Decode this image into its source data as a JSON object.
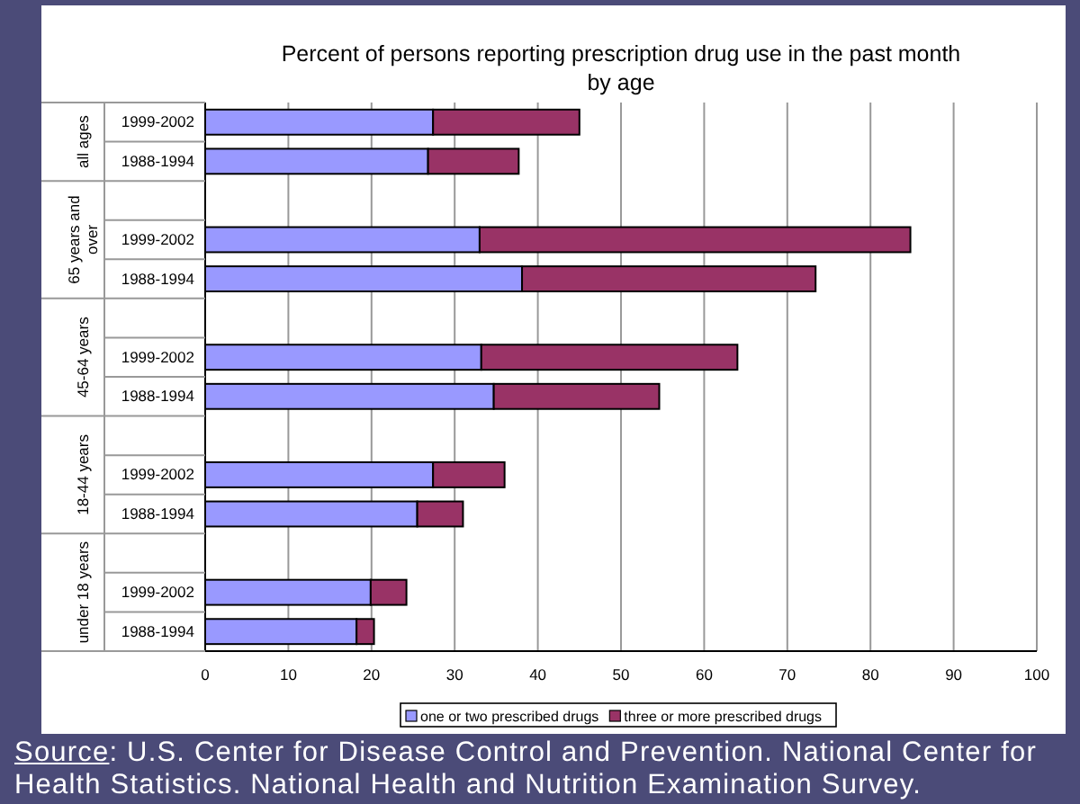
{
  "chart_data": {
    "type": "bar",
    "orientation": "horizontal",
    "stacked": true,
    "title": "Percent of persons reporting prescription drug use in the past month by age",
    "categories": [
      "1999-2002",
      "1988-1994",
      null,
      "1999-2002",
      "1988-1994",
      null,
      "1999-2002",
      "1988-1994",
      null,
      "1999-2002",
      "1988-1994",
      null,
      "1999-2002",
      "1988-1994"
    ],
    "series": [
      {
        "name": "one or two prescribed drugs",
        "color": "#9999ff",
        "values": [
          27.4,
          26.8,
          null,
          33.0,
          38.1,
          null,
          33.2,
          34.7,
          null,
          27.4,
          25.5,
          null,
          19.9,
          18.2
        ]
      },
      {
        "name": "three or more prescribed drugs",
        "color": "#993366",
        "values": [
          17.6,
          10.9,
          null,
          51.8,
          35.3,
          null,
          30.8,
          19.9,
          null,
          8.6,
          5.5,
          null,
          4.3,
          2.1
        ]
      }
    ],
    "xlim": [
      0,
      100
    ],
    "xticks": [
      0,
      10,
      20,
      30,
      40,
      50,
      60,
      70,
      80,
      90,
      100
    ],
    "grid": "x",
    "legend": "bottom",
    "annotations": [
      "all ages",
      "65 years and over",
      "45-64 years",
      "18-44 years",
      "under 18 years",
      "Source: U.S. Center for Disease Control and Prevention. National Center for Health Statistics. National Health and Nutrition Examination Survey."
    ]
  }
}
